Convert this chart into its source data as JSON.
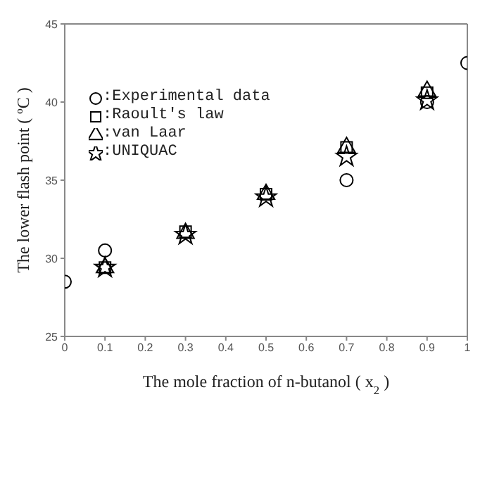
{
  "chart_data": {
    "type": "scatter",
    "xlabel": "The mole fraction of n-butanol ( x$_{2}$ )",
    "ylabel": "The lower flash point ( ºC )",
    "xlim": [
      0,
      1
    ],
    "xticks": [
      0,
      0.1,
      0.2,
      0.3,
      0.4,
      0.5,
      0.6,
      0.7,
      0.8,
      0.9,
      1
    ],
    "ylim": [
      25,
      45
    ],
    "yticks": [
      25,
      30,
      35,
      40,
      45
    ],
    "grid": false,
    "legend": "top left",
    "series": [
      {
        "name": ":Experimental data",
        "color": "#000000",
        "marker": "circle",
        "x": [
          0,
          0.1,
          0.3,
          0.5,
          0.7,
          0.9,
          1
        ],
        "values": [
          28.5,
          30.5,
          null,
          null,
          35.0,
          40.0,
          42.5
        ]
      },
      {
        "name": ":Raoult's law",
        "color": "#000000",
        "marker": "square",
        "x": [
          0.1,
          0.3,
          0.5,
          0.7,
          0.9
        ],
        "values": [
          29.4,
          31.7,
          34.1,
          37.1,
          40.6
        ]
      },
      {
        "name": ":van Laar",
        "color": "#000000",
        "marker": "triangle",
        "x": [
          0.1,
          0.3,
          0.5,
          0.7,
          0.9
        ],
        "values": [
          29.4,
          31.6,
          34.1,
          37.1,
          40.7
        ]
      },
      {
        "name": ":UNIQUAC",
        "color": "#000000",
        "marker": "star",
        "x": [
          0.1,
          0.3,
          0.5,
          0.7,
          0.9
        ],
        "values": [
          29.4,
          31.5,
          33.9,
          36.5,
          40.1
        ]
      }
    ]
  }
}
